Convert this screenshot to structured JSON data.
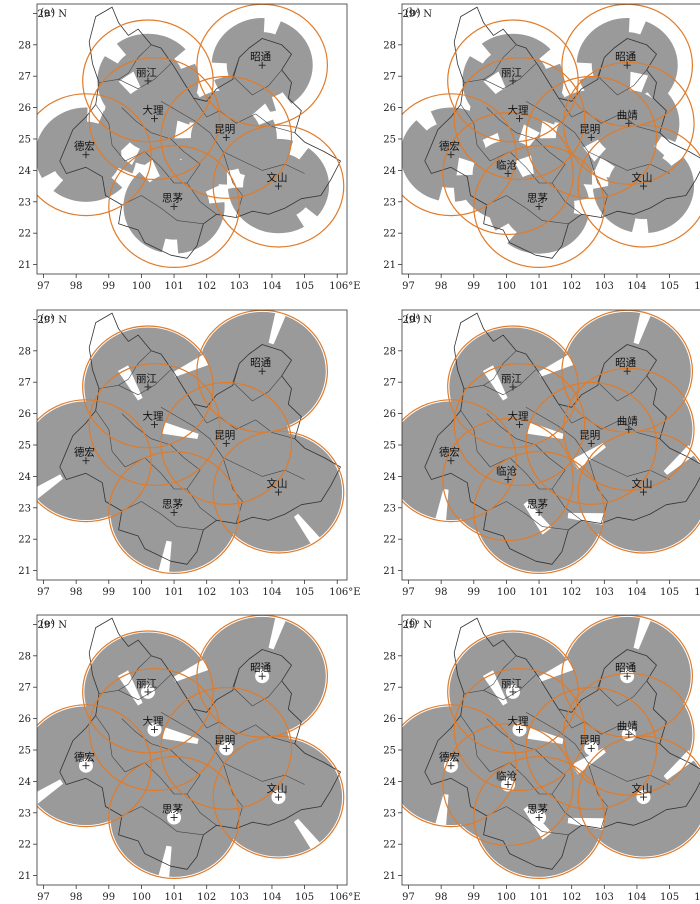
{
  "figure": {
    "x_ticks": [
      97,
      98,
      99,
      100,
      101,
      102,
      103,
      104,
      105,
      106
    ],
    "x_tick_labels": [
      "97",
      "98",
      "99",
      "100",
      "101",
      "102",
      "103",
      "104",
      "105",
      "106°E"
    ],
    "y_ticks": [
      21,
      22,
      23,
      24,
      25,
      26,
      27,
      28,
      29
    ],
    "y_tick_labels": [
      "21",
      "22",
      "23",
      "24",
      "25",
      "26",
      "27",
      "28",
      "29° N"
    ],
    "x_range": [
      96.8,
      106.3
    ],
    "y_range": [
      20.7,
      29.3
    ],
    "ring_color": "#e07b2a",
    "coverage_color": "#9a9a9a"
  },
  "stations": {
    "lijiang": {
      "name": "丽江",
      "lon": 100.2,
      "lat": 26.85
    },
    "zhaotong": {
      "name": "昭通",
      "lon": 103.7,
      "lat": 27.35
    },
    "dali": {
      "name": "大理",
      "lon": 100.4,
      "lat": 25.65
    },
    "kunming": {
      "name": "昆明",
      "lon": 102.6,
      "lat": 25.05
    },
    "qujing": {
      "name": "曲靖",
      "lon": 103.75,
      "lat": 25.5
    },
    "dehong": {
      "name": "德宏",
      "lon": 98.3,
      "lat": 24.5
    },
    "lincang": {
      "name": "临沧",
      "lon": 100.05,
      "lat": 23.9
    },
    "simao": {
      "name": "思茅",
      "lon": 101.0,
      "lat": 22.85
    },
    "wenshan": {
      "name": "文山",
      "lon": 104.2,
      "lat": 23.5
    }
  },
  "panels": [
    {
      "label": "(a)",
      "stations": [
        "lijiang",
        "zhaotong",
        "dali",
        "kunming",
        "dehong",
        "simao",
        "wenshan"
      ],
      "coverage": "partial",
      "holes": false
    },
    {
      "label": "(b)",
      "stations": [
        "lijiang",
        "zhaotong",
        "dali",
        "kunming",
        "qujing",
        "dehong",
        "lincang",
        "simao",
        "wenshan"
      ],
      "coverage": "partial",
      "holes": false
    },
    {
      "label": "(c)",
      "stations": [
        "lijiang",
        "zhaotong",
        "dali",
        "kunming",
        "dehong",
        "simao",
        "wenshan"
      ],
      "coverage": "full",
      "holes": false
    },
    {
      "label": "(d)",
      "stations": [
        "lijiang",
        "zhaotong",
        "dali",
        "kunming",
        "qujing",
        "dehong",
        "lincang",
        "simao",
        "wenshan"
      ],
      "coverage": "full",
      "holes": false
    },
    {
      "label": "(e)",
      "stations": [
        "lijiang",
        "zhaotong",
        "dali",
        "kunming",
        "dehong",
        "simao",
        "wenshan"
      ],
      "coverage": "full",
      "holes": true
    },
    {
      "label": "(f)",
      "stations": [
        "lijiang",
        "zhaotong",
        "dali",
        "kunming",
        "qujing",
        "dehong",
        "lincang",
        "simao",
        "wenshan"
      ],
      "coverage": "full",
      "holes": true
    }
  ]
}
